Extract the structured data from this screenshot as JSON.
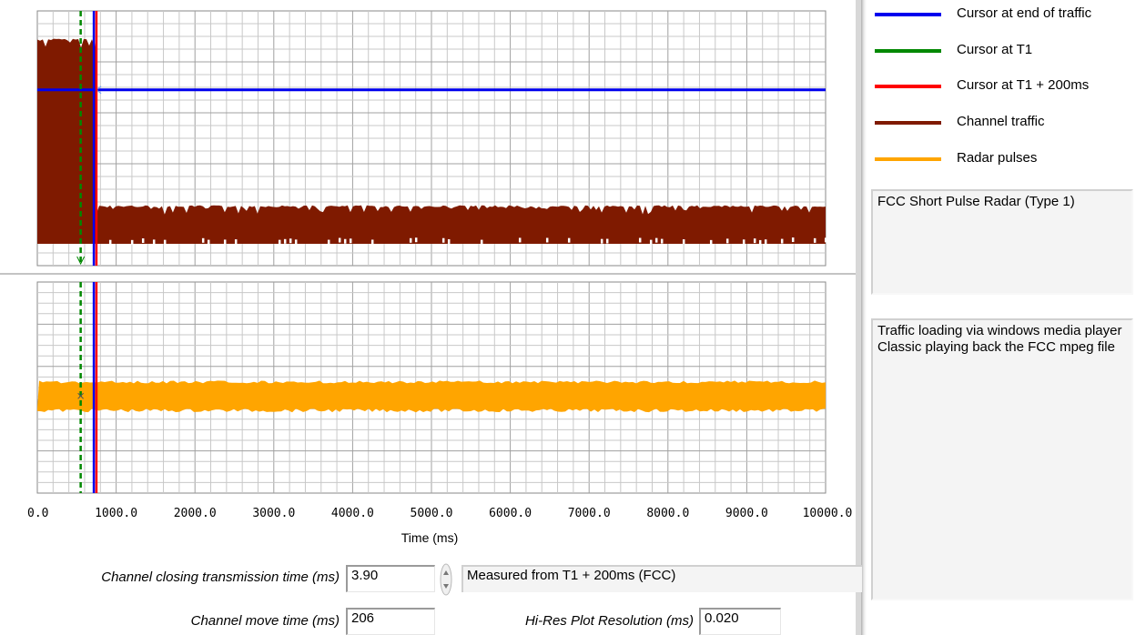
{
  "chart_data": {
    "type": "line",
    "xlabel": "Time (ms)",
    "xlim": [
      0,
      10000
    ],
    "x_ticks": [
      "0.0",
      "1000.0",
      "2000.0",
      "3000.0",
      "4000.0",
      "5000.0",
      "6000.0",
      "7000.0",
      "8000.0",
      "9000.0",
      "10000.0"
    ],
    "cursors": {
      "t1_ms": 550,
      "t1_plus_200_ms": 750,
      "end_of_traffic_ms": 740,
      "end_of_traffic_level": 0.72
    },
    "channel_traffic": {
      "segments": [
        {
          "x_start": 0,
          "x_end": 750,
          "low": 0.0,
          "high": 0.96
        },
        {
          "x_start": 750,
          "x_end": 10000,
          "low": 0.0,
          "high": 0.18
        }
      ]
    },
    "radar_pulses": {
      "segments": [
        {
          "x_start": 0,
          "x_end": 10000,
          "low": 0.4,
          "high": 0.52
        }
      ]
    }
  },
  "legend": {
    "items": [
      {
        "label": "Cursor at end of traffic",
        "color": "#0000ee"
      },
      {
        "label": "Cursor at T1",
        "color": "#008800"
      },
      {
        "label": "Cursor at T1 + 200ms",
        "color": "#ff0000"
      },
      {
        "label": "Channel traffic",
        "color": "#7f1a00"
      },
      {
        "label": "Radar pulses",
        "color": "#ffa500"
      }
    ]
  },
  "info": {
    "radar_type": "FCC Short Pulse Radar (Type 1)",
    "traffic_note": "Traffic loading via windows media player Classic playing back the FCC mpeg file"
  },
  "controls": {
    "closing_time_label": "Channel closing transmission time (ms)",
    "closing_time_value": "3.90",
    "measured_from": "Measured from T1 + 200ms (FCC)",
    "move_time_label": "Channel move time (ms)",
    "move_time_value": "206",
    "resolution_label": "Hi-Res Plot Resolution (ms)",
    "resolution_value": "0.020"
  },
  "colors": {
    "grid_major": "#a0a0a0",
    "grid_minor": "#c8c8c8",
    "end_cursor": "#0000ee",
    "t1_cursor": "#008800",
    "t1_200_cursor": "#ff0000",
    "traffic": "#7f1a00",
    "radar": "#ffa500"
  }
}
